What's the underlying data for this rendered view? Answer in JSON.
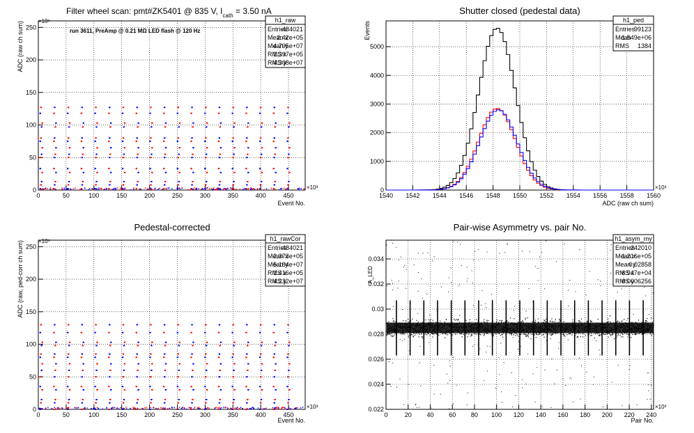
{
  "chart_data": [
    {
      "type": "scatter",
      "title_main": "Filter wheel scan: pmt#ZK5401 @   835 V, I",
      "title_sub": "cath",
      "title_tail": " = 3.50 nA",
      "annotation": "run 3611, PreAmp @ 0.21 MΩ LED flash @  120 Hz",
      "xlabel": "Event No.",
      "ylabel": "ADC (raw ch sum)",
      "x_exponent": "×10³",
      "y_exponent": "×10⁶",
      "xlim": [
        0,
        480
      ],
      "ylim": [
        0,
        260
      ],
      "x_ticks": [
        0,
        50,
        100,
        150,
        200,
        250,
        300,
        350,
        400,
        450
      ],
      "y_ticks": [
        0,
        50,
        100,
        150,
        200,
        250
      ],
      "stats_name": "h1_raw",
      "stats": [
        [
          "Entries",
          "484021"
        ],
        [
          "Mean x",
          "2.42e+05"
        ],
        [
          "Mean y",
          "4.795e+07"
        ],
        [
          "RMS x",
          "1.397e+05"
        ],
        [
          "RMS y",
          "4.308e+07"
        ]
      ],
      "levels": [
        2,
        8,
        13,
        27,
        33,
        50,
        55,
        65,
        75,
        80,
        97,
        103,
        118,
        127
      ],
      "period": 24.7,
      "series": [
        {
          "color": "#0000ff"
        },
        {
          "color": "#ff0000"
        }
      ]
    },
    {
      "type": "histogram",
      "title": "Shutter closed (pedestal data)",
      "xlabel": "ADC (raw ch sum)",
      "ylabel": "Events",
      "x_exponent": "×10³",
      "xlim": [
        1540,
        1560
      ],
      "ylim": [
        0,
        5900
      ],
      "x_ticks": [
        1540,
        1542,
        1544,
        1546,
        1548,
        1550,
        1552,
        1554,
        1556,
        1558,
        1560
      ],
      "y_ticks": [
        0,
        1000,
        2000,
        3000,
        4000,
        5000
      ],
      "stats_name": "h1_ped",
      "stats": [
        [
          "Entries",
          "99123"
        ],
        [
          "Mean",
          "1.549e+06"
        ],
        [
          "RMS",
          "1384"
        ]
      ],
      "series": [
        {
          "color": "#000000",
          "peak": 5650,
          "mean": 1548.3,
          "sigma": 1.38
        },
        {
          "color": "#ff0000",
          "peak": 2850,
          "mean": 1548.3,
          "sigma": 1.38
        },
        {
          "color": "#0000ff",
          "peak": 2800,
          "mean": 1548.4,
          "sigma": 1.4
        }
      ]
    },
    {
      "type": "scatter",
      "title": "Pedestal-corrected",
      "xlabel": "Event No.",
      "ylabel": "ADC (raw, ped-corr ch sum)",
      "x_exponent": "×10³",
      "y_exponent": "×10⁶",
      "xlim": [
        0,
        480
      ],
      "ylim": [
        0,
        260
      ],
      "x_ticks": [
        0,
        50,
        100,
        150,
        200,
        250,
        300,
        350,
        400,
        450
      ],
      "y_ticks": [
        0,
        50,
        100,
        150,
        200,
        250
      ],
      "stats_name": "h1_rawCor",
      "stats": [
        [
          "Entries",
          "484021"
        ],
        [
          "Mean x",
          "2.373e+05"
        ],
        [
          "Mean y",
          "5.184e+07"
        ],
        [
          "RMS x",
          "1.416e+05"
        ],
        [
          "RMS y",
          "4.232e+07"
        ]
      ],
      "levels": [
        0,
        10,
        15,
        30,
        35,
        50,
        60,
        70,
        80,
        85,
        98,
        103,
        118,
        130
      ],
      "period": 24.7,
      "series": [
        {
          "color": "#0000ff"
        },
        {
          "color": "#ff0000"
        }
      ]
    },
    {
      "type": "scatter",
      "title": "Pair-wise Asymmetry vs. pair No.",
      "xlabel": "Pair No.",
      "ylabel": "A_LED",
      "x_exponent": "×10³",
      "xlim": [
        0,
        242
      ],
      "ylim": [
        0.022,
        0.0355
      ],
      "x_ticks": [
        0,
        20,
        40,
        60,
        80,
        100,
        120,
        140,
        160,
        180,
        200,
        220,
        240
      ],
      "y_ticks": [
        0.022,
        0.024,
        0.026,
        0.028,
        0.03,
        0.032,
        0.034
      ],
      "y_tick_labels": [
        "0.022",
        "0.024",
        "0.026",
        "0.028",
        "0.03",
        "0.032",
        "0.034"
      ],
      "stats_name": "h1_asym_my",
      "stats": [
        [
          "Entries",
          "242010"
        ],
        [
          "Mean x",
          "1.216e+05"
        ],
        [
          "Mean y",
          "0.02858"
        ],
        [
          "RMS x",
          "6.947e+04"
        ],
        [
          "RMS y",
          "0.0006256"
        ]
      ],
      "band_center": 0.0285,
      "band_halfwidth": 0.0006,
      "spike_period": 12.4,
      "series": [
        {
          "color": "#000000"
        }
      ]
    }
  ]
}
